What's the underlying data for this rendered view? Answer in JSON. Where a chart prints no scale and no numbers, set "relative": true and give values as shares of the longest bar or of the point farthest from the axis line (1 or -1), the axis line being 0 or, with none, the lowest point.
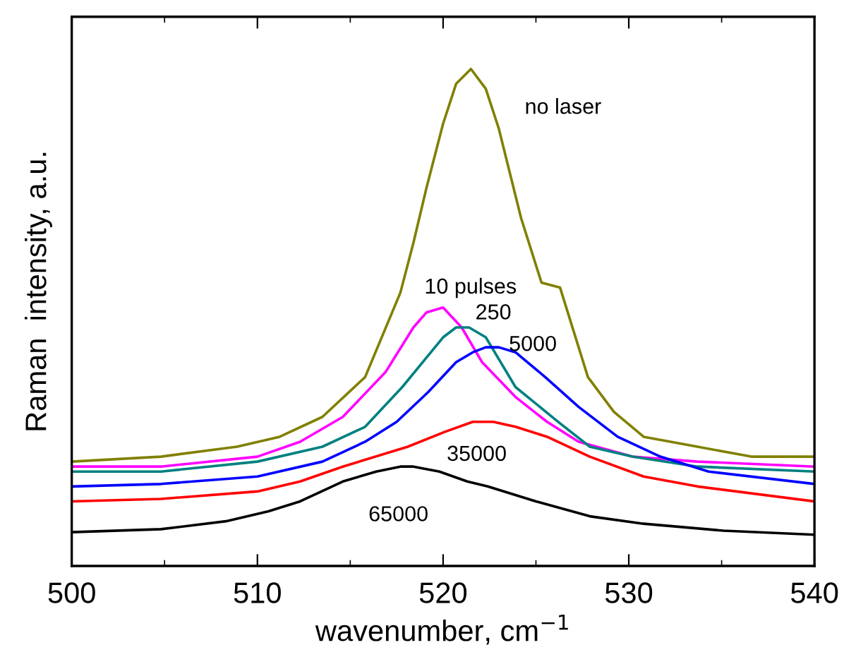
{
  "chart_data": {
    "type": "line",
    "relative": true,
    "xlabel": "wavenumber, cm$^{−1}$",
    "ylabel": "Raman  intensity, a.u.",
    "xlim": [
      500,
      540
    ],
    "xticks": [
      500,
      510,
      520,
      530,
      540
    ],
    "grid": false,
    "legend": false,
    "marker": "none",
    "line_style": "solid",
    "tick_labels": "x",
    "series": [
      {
        "name": "no laser",
        "color": "#808000",
        "x": [
          500,
          504.8,
          508.9,
          511.2,
          513.5,
          515.8,
          517.7,
          518.4,
          519.1,
          520,
          520.7,
          521.5,
          522.3,
          523,
          524.2,
          525.3,
          526.3,
          527.8,
          529.2,
          530.8,
          533.7,
          536.6,
          540
        ],
        "values": [
          0.21,
          0.22,
          0.24,
          0.26,
          0.3,
          0.38,
          0.55,
          0.65,
          0.76,
          0.89,
          0.97,
          1.0,
          0.96,
          0.88,
          0.7,
          0.57,
          0.56,
          0.38,
          0.31,
          0.26,
          0.24,
          0.22,
          0.22
        ]
      },
      {
        "name": "10 pulses",
        "color": "#ff00ff",
        "x": [
          500,
          504.8,
          510,
          512.3,
          514.6,
          516.9,
          518.4,
          519.1,
          520,
          521,
          522.1,
          523.9,
          525.6,
          527.3,
          530.2,
          533.7,
          540
        ],
        "values": [
          0.2,
          0.2,
          0.22,
          0.25,
          0.3,
          0.39,
          0.48,
          0.51,
          0.52,
          0.48,
          0.41,
          0.34,
          0.29,
          0.25,
          0.22,
          0.21,
          0.2
        ]
      },
      {
        "name": "250",
        "color": "#008080",
        "x": [
          500,
          504.8,
          510,
          513.5,
          515.8,
          517.8,
          520,
          520.7,
          521.4,
          522.3,
          523.9,
          526.2,
          527.9,
          530.2,
          533.7,
          540
        ],
        "values": [
          0.19,
          0.19,
          0.21,
          0.24,
          0.28,
          0.36,
          0.46,
          0.48,
          0.48,
          0.46,
          0.36,
          0.29,
          0.24,
          0.22,
          0.2,
          0.19
        ]
      },
      {
        "name": "5000",
        "color": "#0000ff",
        "x": [
          500,
          504.8,
          510,
          513.5,
          515.8,
          517.5,
          519.2,
          520.7,
          521.6,
          522.3,
          523,
          523.9,
          525.5,
          527.3,
          529.4,
          531.7,
          534.3,
          540
        ],
        "values": [
          0.16,
          0.165,
          0.18,
          0.21,
          0.25,
          0.29,
          0.35,
          0.41,
          0.43,
          0.44,
          0.44,
          0.43,
          0.38,
          0.32,
          0.26,
          0.22,
          0.19,
          0.165
        ]
      },
      {
        "name": "35000",
        "color": "#ff0000",
        "x": [
          500,
          504.8,
          510,
          512.3,
          514.6,
          518.1,
          520.1,
          521.6,
          522.7,
          523.9,
          525.6,
          527.9,
          530.8,
          533.7,
          540
        ],
        "values": [
          0.13,
          0.135,
          0.15,
          0.17,
          0.2,
          0.24,
          0.27,
          0.29,
          0.29,
          0.28,
          0.26,
          0.22,
          0.18,
          0.16,
          0.13
        ]
      },
      {
        "name": "65000",
        "color": "#000000",
        "x": [
          500,
          504.8,
          508.3,
          510.6,
          512.3,
          514.6,
          516.4,
          517.7,
          518.4,
          519.8,
          521.3,
          522.4,
          525,
          527.9,
          530.8,
          535.1,
          540
        ],
        "values": [
          0.068,
          0.074,
          0.09,
          0.11,
          0.13,
          0.17,
          0.19,
          0.2,
          0.2,
          0.19,
          0.17,
          0.16,
          0.13,
          0.1,
          0.085,
          0.071,
          0.063
        ]
      }
    ]
  }
}
